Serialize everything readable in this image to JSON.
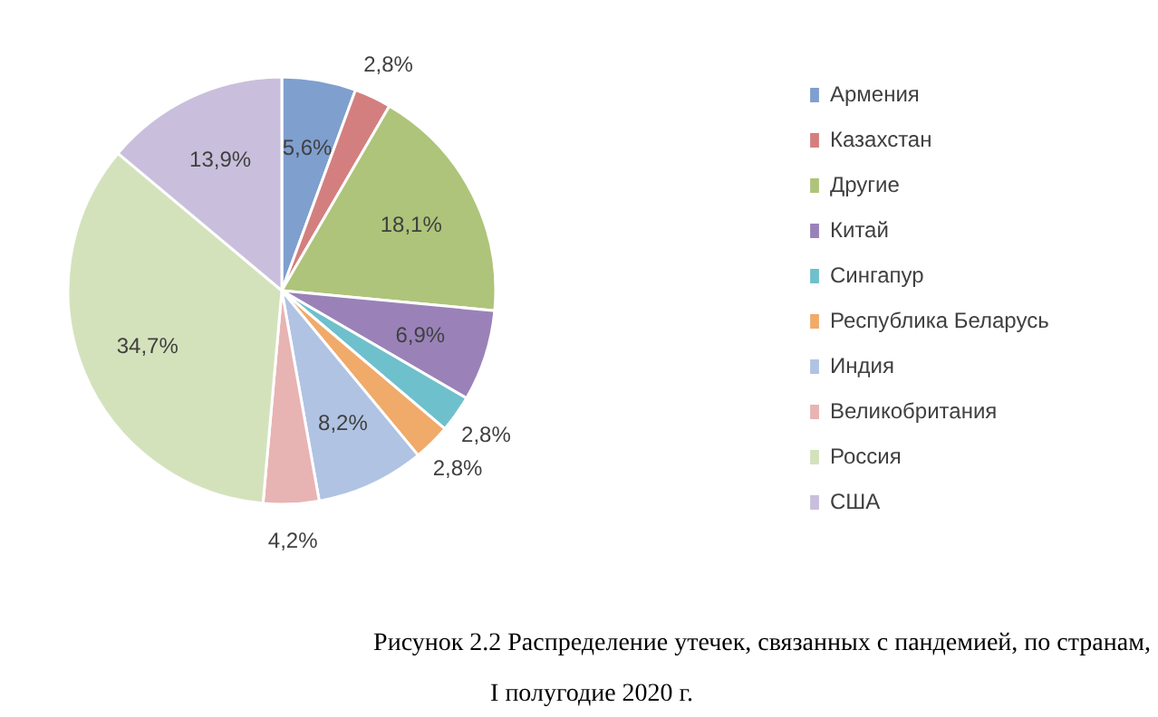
{
  "chart_data": {
    "type": "pie",
    "title": "Рисунок 2.2 Распределение утечек, связанных с пандемией, по странам, I полугодие 2020 г.",
    "categories": [
      "Армения",
      "Казахстан",
      "Другие",
      "Китай",
      "Сингапур",
      "Республика Беларусь",
      "Индия",
      "Великобритания",
      "Россия",
      "США"
    ],
    "values": [
      5.6,
      2.8,
      18.1,
      6.9,
      2.8,
      2.8,
      8.2,
      4.2,
      34.7,
      13.9
    ],
    "value_labels": [
      "5,6%",
      "2,8%",
      "18,1%",
      "6,9%",
      "2,8%",
      "2,8%",
      "8,2%",
      "4,2%",
      "34,7%",
      "13,9%"
    ],
    "colors": [
      "#7f9fcf",
      "#d47f7f",
      "#aec47a",
      "#9a82b8",
      "#6ec0cc",
      "#f0aa6a",
      "#b0c3e3",
      "#e8b3b3",
      "#d4e2bc",
      "#c9bfdc"
    ],
    "legend": "right"
  }
}
